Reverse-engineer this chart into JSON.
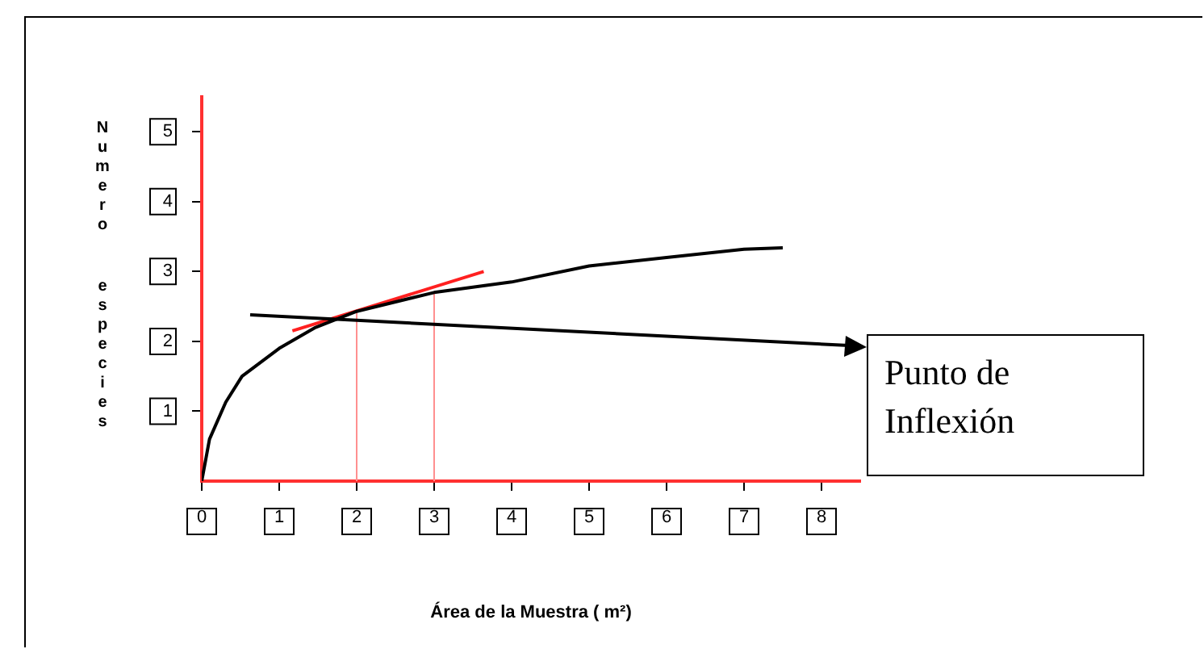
{
  "chart_data": {
    "type": "line",
    "xlabel": "Área de la Muestra ( m²)",
    "ylabel": "Numero especies",
    "series": [
      {
        "color": "#000000",
        "x": [
          0,
          0.05,
          0.1,
          0.31,
          0.52,
          1,
          1.47,
          2,
          3,
          4,
          5,
          6,
          7,
          7.5
        ],
        "values": [
          0,
          0.3,
          0.6,
          1.13,
          1.5,
          1.9,
          2.2,
          2.43,
          2.7,
          2.85,
          3.08,
          3.2,
          3.32,
          3.34
        ]
      },
      {
        "color": "#ff2020",
        "x": [
          1.17,
          3.64
        ],
        "values": [
          2.15,
          3.0
        ]
      }
    ],
    "xlim": [
      0,
      8.5
    ],
    "xticks": [
      0,
      1,
      2,
      3,
      4,
      5,
      6,
      7,
      8
    ],
    "ylim": [
      0,
      5.5
    ],
    "yticks": [
      1,
      2,
      3,
      4,
      5
    ],
    "ref_lines": [
      {
        "axis": "x",
        "value": 2,
        "color": "#ff9090"
      },
      {
        "axis": "x",
        "value": 3,
        "color": "#ff9090"
      }
    ],
    "annotations": [
      "Punto de Inflexión"
    ],
    "marker": "none",
    "line_style": "solid",
    "grid": false,
    "legend": false
  }
}
